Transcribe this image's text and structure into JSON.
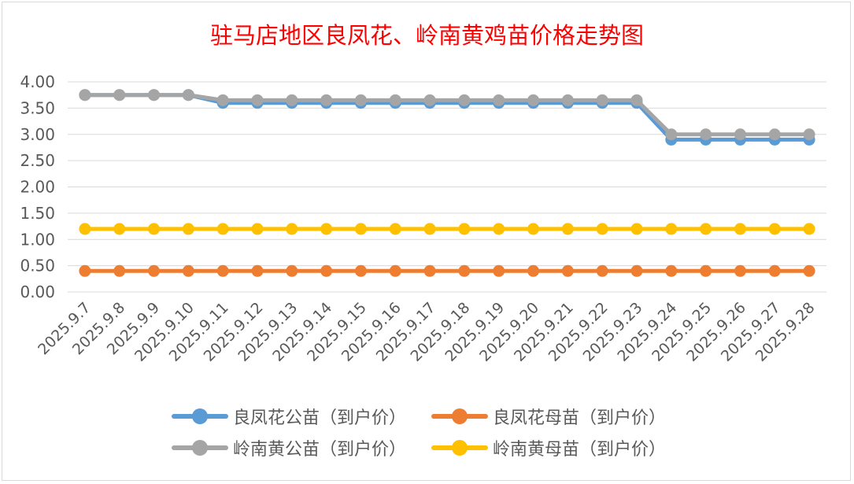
{
  "chart_data": {
    "type": "line",
    "title": "驻马店地区良凤花、岭南黄鸡苗价格走势图",
    "categories": [
      "2025.9.7",
      "2025.9.8",
      "2025.9.9",
      "2025.9.10",
      "2025.9.11",
      "2025.9.12",
      "2025.9.13",
      "2025.9.14",
      "2025.9.15",
      "2025.9.16",
      "2025.9.17",
      "2025.9.18",
      "2025.9.19",
      "2025.9.20",
      "2025.9.21",
      "2025.9.22",
      "2025.9.23",
      "2025.9.24",
      "2025.9.25",
      "2025.9.26",
      "2025.9.27",
      "2025.9.28"
    ],
    "ylim": [
      0,
      4
    ],
    "yticks": [
      "0.00",
      "0.50",
      "1.00",
      "1.50",
      "2.00",
      "2.50",
      "3.00",
      "3.50",
      "4.00"
    ],
    "grid": true,
    "legend_position": "bottom",
    "series": [
      {
        "name": "良凤花公苗（到户价）",
        "color": "#5b9bd5",
        "values": [
          3.75,
          3.75,
          3.75,
          3.75,
          3.6,
          3.6,
          3.6,
          3.6,
          3.6,
          3.6,
          3.6,
          3.6,
          3.6,
          3.6,
          3.6,
          3.6,
          3.6,
          2.9,
          2.9,
          2.9,
          2.9,
          2.9
        ]
      },
      {
        "name": "良凤花母苗（到户价）",
        "color": "#ed7d31",
        "values": [
          0.4,
          0.4,
          0.4,
          0.4,
          0.4,
          0.4,
          0.4,
          0.4,
          0.4,
          0.4,
          0.4,
          0.4,
          0.4,
          0.4,
          0.4,
          0.4,
          0.4,
          0.4,
          0.4,
          0.4,
          0.4,
          0.4
        ]
      },
      {
        "name": "岭南黄公苗（到户价）",
        "color": "#a5a5a5",
        "values": [
          3.75,
          3.75,
          3.75,
          3.75,
          3.65,
          3.65,
          3.65,
          3.65,
          3.65,
          3.65,
          3.65,
          3.65,
          3.65,
          3.65,
          3.65,
          3.65,
          3.65,
          3.0,
          3.0,
          3.0,
          3.0,
          3.0
        ]
      },
      {
        "name": "岭南黄母苗（到户价）",
        "color": "#ffc000",
        "values": [
          1.2,
          1.2,
          1.2,
          1.2,
          1.2,
          1.2,
          1.2,
          1.2,
          1.2,
          1.2,
          1.2,
          1.2,
          1.2,
          1.2,
          1.2,
          1.2,
          1.2,
          1.2,
          1.2,
          1.2,
          1.2,
          1.2
        ]
      }
    ]
  }
}
